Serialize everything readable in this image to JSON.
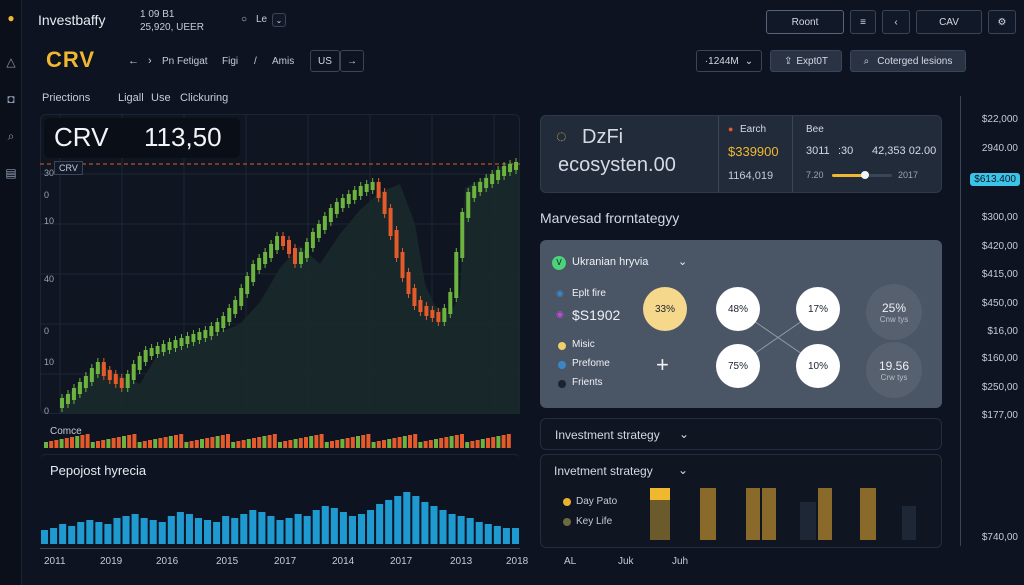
{
  "header": {
    "app_name": "Investbaffy",
    "ticker_line1": "1 09 B1",
    "ticker_line2": "25,920, UEER",
    "mini_label": "Le",
    "reset_label": "Roont",
    "cav_label": "CAV"
  },
  "toolbar": {
    "symbol": "CRV",
    "nav_items": [
      "Pn Fetigat",
      "Figi",
      "Amis"
    ],
    "region": "US",
    "interval": "·1244M",
    "export_label": "Expt0T",
    "search_label": "Coterged lesions"
  },
  "chart_tabs": [
    "Priections",
    "Ligall",
    "Use",
    "Clickuring"
  ],
  "price": {
    "symbol": "CRV",
    "value": "113,50",
    "label": "CRV"
  },
  "price_axis_left": [
    "30",
    "0",
    "10",
    "40",
    "0",
    "10",
    "0"
  ],
  "volume_label": "Comce",
  "lower_chart_title": "Pepojost hyrecia",
  "x_axis": [
    "2011",
    "2019",
    "2016",
    "2015",
    "2017",
    "2014",
    "2017",
    "2013",
    "2018"
  ],
  "right_x_axis": [
    "AL",
    "Juk",
    "Juh"
  ],
  "right_axis": [
    "$22,000",
    "2940.00",
    "$613.400",
    "$300,00",
    "$420,00",
    "$415,00",
    "$450,00",
    "$16,00",
    "$160,00",
    "$250,00",
    "$177,00",
    "$740,00"
  ],
  "defi_card": {
    "title_line1": "DzFi",
    "title_line2": "ecosysten.00",
    "col1_title": "Earch",
    "col1_value": "$339900",
    "col1_sub": "1164,019",
    "col2_title": "Bee",
    "col2_a": "3011",
    "col2_b": ":30",
    "col2_c": "42,353 02.00",
    "col2_d": "7.20",
    "col2_e": "2017",
    "slider_level": 0.55
  },
  "strategy_title": "Marvesad frorntategyy",
  "allocation": {
    "dropdown_label": "Ukranian hryvia",
    "split_label": "Eplt fire",
    "split_value": "$S1902",
    "legend": [
      {
        "label": "Misic",
        "color": "#f0cf6a"
      },
      {
        "label": "Prefome",
        "color": "#3d86c6"
      },
      {
        "label": "Frients",
        "color": "#1b2230"
      }
    ],
    "circles": [
      {
        "label": "33%",
        "style": "yellow"
      },
      {
        "label": "48%",
        "style": "white"
      },
      {
        "label": "17%",
        "style": "white"
      },
      {
        "label": "75%",
        "style": "white"
      },
      {
        "label": "10%",
        "style": "white"
      }
    ],
    "stat1_value": "25%",
    "stat1_label": "Cnw tys",
    "stat2_value": "19.56",
    "stat2_label": "Crw tys"
  },
  "investment_strategy": {
    "dropdown1": "Investment strategy",
    "dropdown2": "Invetment strategy",
    "legend": [
      {
        "label": "Day Pato",
        "color": "#e9b32b"
      },
      {
        "label": "Key Life",
        "color": "#6b6b3f"
      }
    ]
  },
  "colors": {
    "accent": "#f0b82f",
    "up": "#6cb33f",
    "down": "#e45a2a",
    "blue_bar": "#1e9ad0",
    "badge": "#39c4e8"
  },
  "icons": [
    "logo-icon",
    "bell-icon",
    "camera-icon",
    "search-icon",
    "database-icon",
    "arrow-left-icon",
    "arrow-right-icon",
    "chevron-down-icon",
    "menu-icon",
    "back-icon",
    "settings-icon",
    "plus-icon"
  ]
}
